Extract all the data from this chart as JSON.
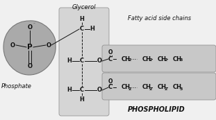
{
  "bg_color": "#f0f0f0",
  "gray_phosphate": "#aaaaaa",
  "gray_glycerol": "#d5d5d5",
  "gray_fatty": "#c8c8c8",
  "text_color": "#111111",
  "title": "PHOSPHOLIPID",
  "label_glycerol": "Glycerol",
  "label_phosphate": "Phosphate",
  "label_fatty": "Fatty acid side chains",
  "figsize": [
    3.11,
    1.73
  ],
  "dpi": 100
}
